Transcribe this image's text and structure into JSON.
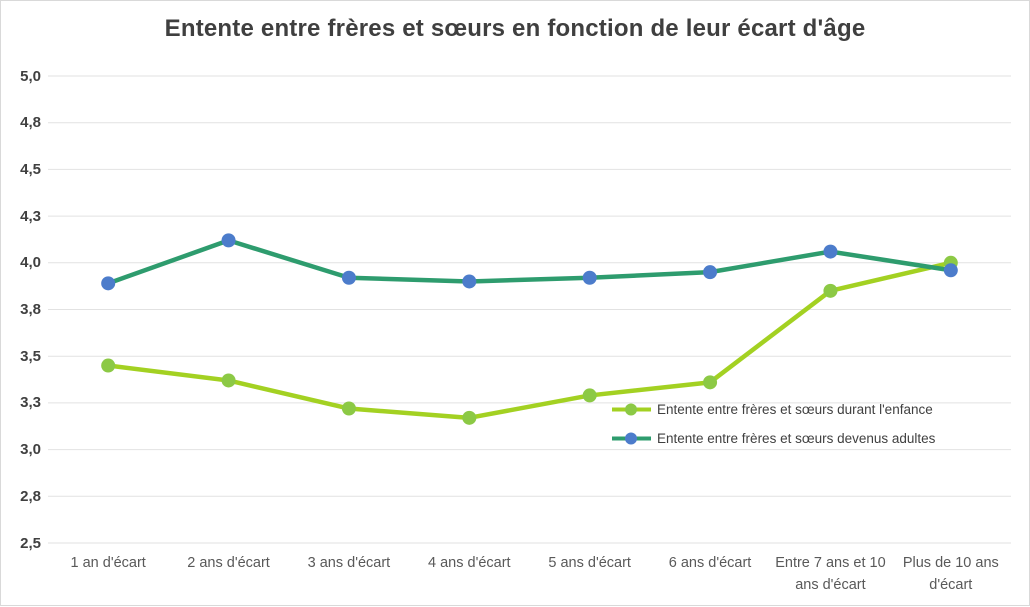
{
  "chart_data": {
    "type": "line",
    "title": "Entente entre frères et sœurs en fonction de leur écart d'âge",
    "categories": [
      "1 an d'écart",
      "2 ans d'écart",
      "3 ans d'écart",
      "4 ans d'écart",
      "5 ans d'écart",
      "6 ans d'écart",
      "Entre 7 ans et 10 ans d'écart",
      "Plus de 10 ans d'écart"
    ],
    "category_display_lines": [
      [
        "1 an d'écart"
      ],
      [
        "2 ans d'écart"
      ],
      [
        "3 ans d'écart"
      ],
      [
        "4 ans d'écart"
      ],
      [
        "5 ans d'écart"
      ],
      [
        "6 ans d'écart"
      ],
      [
        "Entre 7 ans et 10",
        "ans d'écart"
      ],
      [
        "Plus de 10 ans",
        "d'écart"
      ]
    ],
    "series": [
      {
        "name": "Entente entre frères et sœurs durant l'enfance",
        "line_color": "#a3d122",
        "marker_color": "#8cc945",
        "values": [
          3.45,
          3.37,
          3.22,
          3.17,
          3.29,
          3.36,
          3.85,
          4.0
        ]
      },
      {
        "name": "Entente entre frères et sœurs devenus adultes",
        "line_color": "#2e9c6e",
        "marker_color": "#4c7ccb",
        "values": [
          3.89,
          4.12,
          3.92,
          3.9,
          3.92,
          3.95,
          4.06,
          3.96
        ]
      }
    ],
    "y_axis": {
      "min": 2.5,
      "max": 5.0,
      "step": 0.25,
      "tick_labels_top_to_bottom": [
        "5,0",
        "4,8",
        "4,5",
        "4,3",
        "4,0",
        "3,8",
        "3,5",
        "3,3",
        "3,0",
        "2,8",
        "2,5"
      ]
    },
    "xlabel": "",
    "ylabel": "",
    "grid": true,
    "legend_position": "inside-right",
    "colors": {
      "title_text": "#3f3f3f",
      "axis_tick_text": "#404040",
      "category_text": "#595959",
      "gridline": "#e2e2e2",
      "frame_border": "#d9d9d9",
      "background": "#ffffff"
    }
  }
}
